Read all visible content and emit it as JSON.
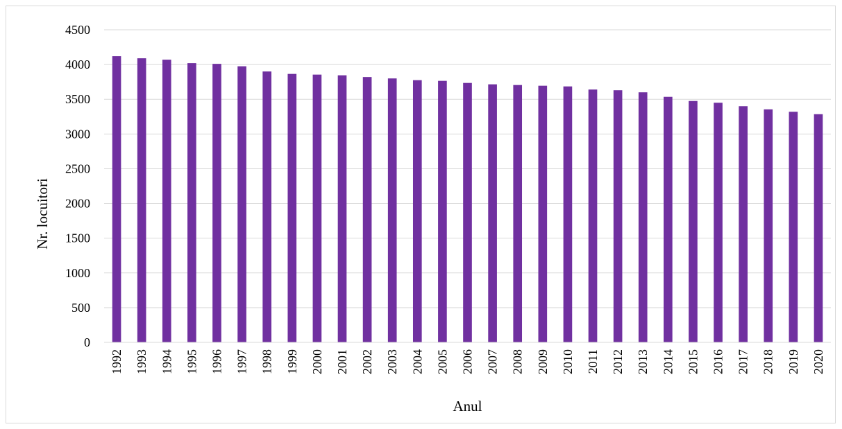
{
  "chart_data": {
    "type": "bar",
    "title": "",
    "xlabel": "Anul",
    "ylabel": "Nr. locuitori",
    "ylim": [
      0,
      4500
    ],
    "yticks": [
      0,
      500,
      1000,
      1500,
      2000,
      2500,
      3000,
      3500,
      4000,
      4500
    ],
    "grid": true,
    "legend": "none",
    "bar_color": "#7030A0",
    "categories": [
      "1992",
      "1993",
      "1994",
      "1995",
      "1996",
      "1997",
      "1998",
      "1999",
      "2000",
      "2001",
      "2002",
      "2003",
      "2004",
      "2005",
      "2006",
      "2007",
      "2008",
      "2009",
      "2010",
      "2011",
      "2012",
      "2013",
      "2014",
      "2015",
      "2016",
      "2017",
      "2018",
      "2019",
      "2020"
    ],
    "values": [
      4120,
      4090,
      4070,
      4020,
      4010,
      3975,
      3900,
      3865,
      3855,
      3845,
      3820,
      3800,
      3775,
      3765,
      3735,
      3715,
      3705,
      3695,
      3685,
      3640,
      3630,
      3600,
      3535,
      3475,
      3450,
      3400,
      3355,
      3320,
      3285
    ]
  }
}
